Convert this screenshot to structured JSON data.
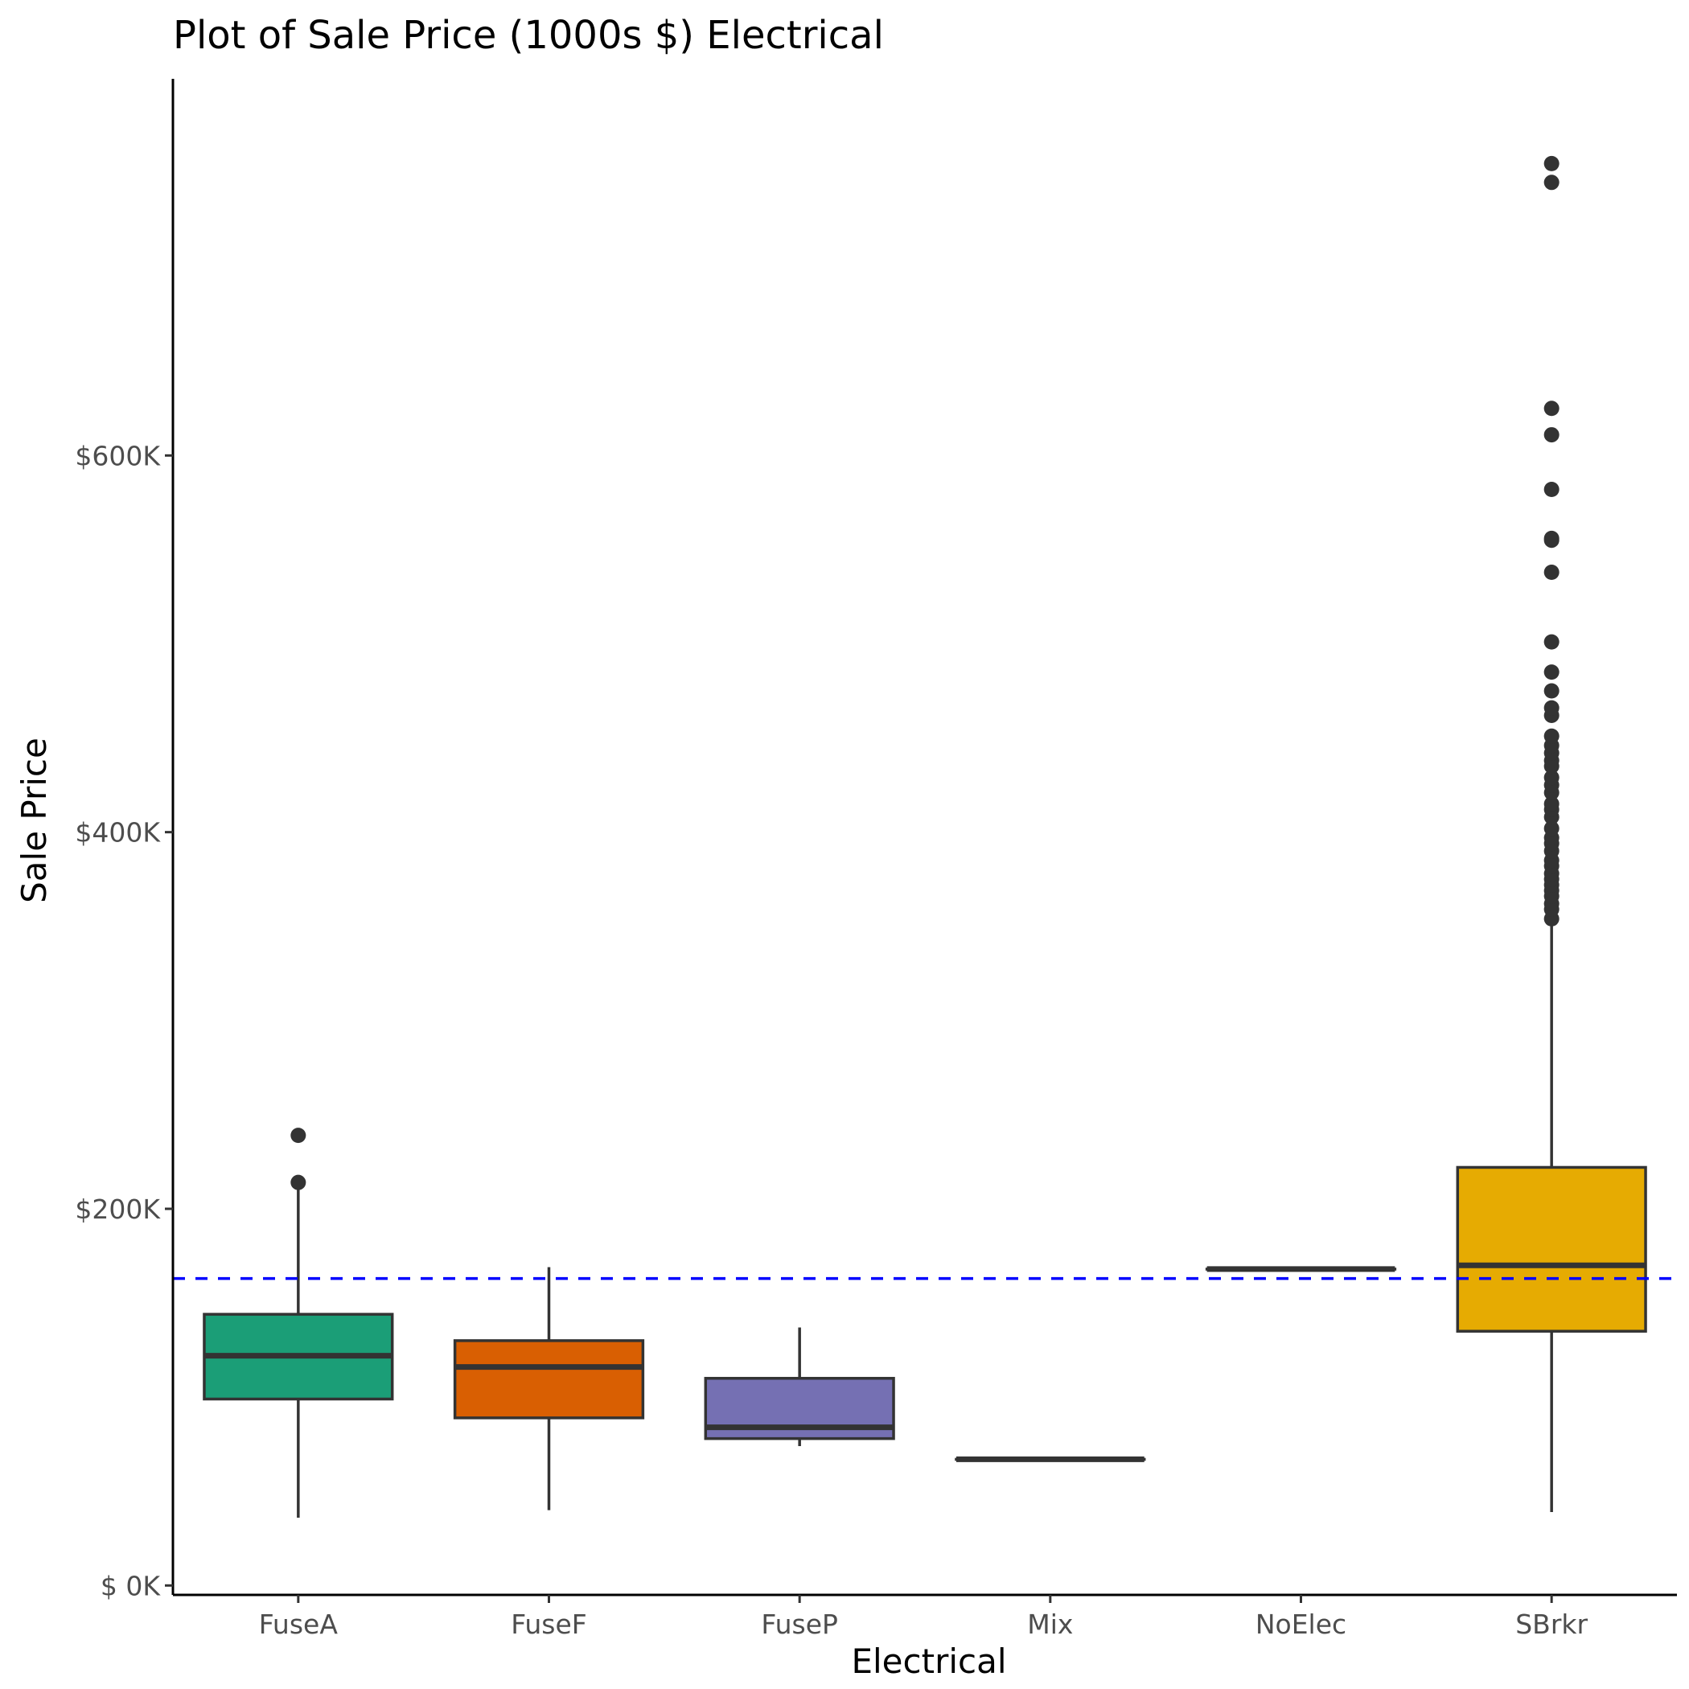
{
  "chart_data": {
    "type": "box",
    "title": "Plot of Sale Price (1000s $) Electrical",
    "xlabel": "Electrical",
    "ylabel": "Sale Price",
    "ylim": [
      -5000,
      800000
    ],
    "y_ticks": [
      {
        "value": 0,
        "label": "$  0K"
      },
      {
        "value": 200000,
        "label": "$200K"
      },
      {
        "value": 400000,
        "label": "$400K"
      },
      {
        "value": 600000,
        "label": "$600K"
      }
    ],
    "reference_line": {
      "value": 163000,
      "color": "#0000ff",
      "style": "dashed"
    },
    "grid": false,
    "legend": "none",
    "categories": [
      "FuseA",
      "FuseF",
      "FuseP",
      "Mix",
      "NoElec",
      "SBrkr"
    ],
    "boxes": [
      {
        "category": "FuseA",
        "fill": "#1b9e77",
        "whisker_low": 36000,
        "q1": 99000,
        "median": 122000,
        "q3": 144000,
        "whisker_high": 210000,
        "outliers": [
          214000,
          239000
        ]
      },
      {
        "category": "FuseF",
        "fill": "#d95f02",
        "whisker_low": 40000,
        "q1": 89000,
        "median": 116000,
        "q3": 130000,
        "whisker_high": 169000,
        "outliers": []
      },
      {
        "category": "FuseP",
        "fill": "#7570b3",
        "whisker_low": 74000,
        "q1": 78000,
        "median": 84000,
        "q3": 110000,
        "whisker_high": 137000,
        "outliers": []
      },
      {
        "category": "Mix",
        "fill": "#e7298a",
        "whisker_low": 67000,
        "q1": 67000,
        "median": 67000,
        "q3": 67000,
        "whisker_high": 67000,
        "outliers": []
      },
      {
        "category": "NoElec",
        "fill": "#66a61e",
        "whisker_low": 168000,
        "q1": 168000,
        "median": 168000,
        "q3": 168000,
        "whisker_high": 168000,
        "outliers": []
      },
      {
        "category": "SBrkr",
        "fill": "#e6ab02",
        "whisker_low": 39000,
        "q1": 135000,
        "median": 170000,
        "q3": 222000,
        "whisker_high": 351000,
        "outliers": [
          354000,
          359000,
          362000,
          366000,
          369000,
          372000,
          375000,
          378000,
          382000,
          385000,
          390000,
          394000,
          397000,
          402000,
          408000,
          412000,
          415000,
          421000,
          425000,
          429000,
          435000,
          438000,
          442000,
          446000,
          451000,
          462000,
          466000,
          475000,
          485000,
          501000,
          538000,
          555000,
          556000,
          582000,
          611000,
          625000,
          745000,
          755000
        ]
      }
    ]
  }
}
